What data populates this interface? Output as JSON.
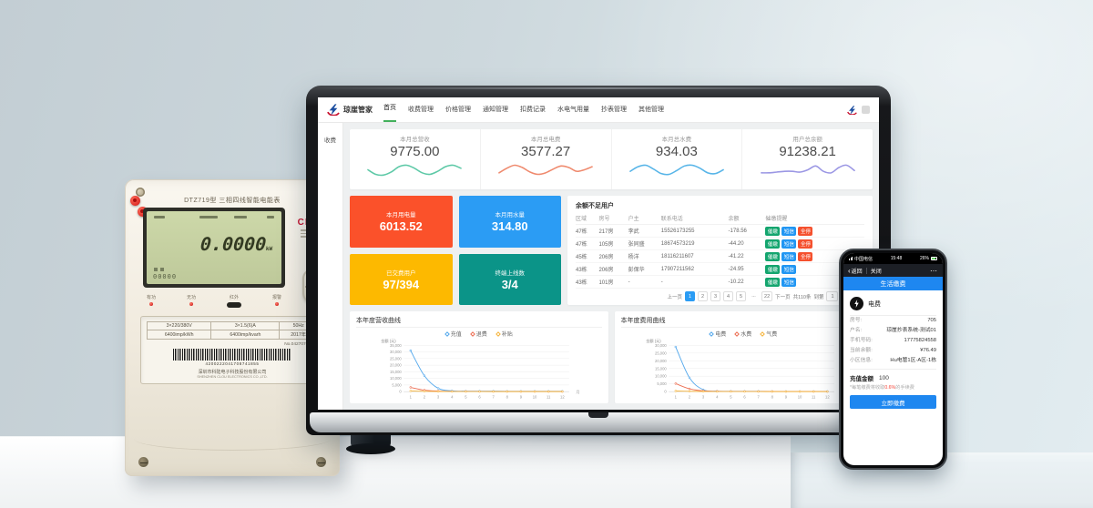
{
  "theme": {
    "accent_green": "#43b05c",
    "chip_colors": [
      "#13a56e",
      "#2196f3",
      "#f5512e"
    ],
    "phone_blue": "#1e87f0",
    "wifi_blue": "#2f97ea"
  },
  "meter": {
    "model_title": "DTZ719型 三相四线智能电能表",
    "brand": "CLOU",
    "lcd_value": "0.0000",
    "lcd_unit": "kW",
    "lcd_sub": "00000",
    "indicators": [
      "有功",
      "无功",
      "红外",
      "报警"
    ],
    "nameplate": {
      "specs_row1": [
        "3×220/380V",
        "3×1.5(6)A",
        "50Hz"
      ],
      "specs_row2": [
        "6400imp/kWh",
        "6400imp/kvarh",
        "2017年"
      ],
      "serial": "No.04270767003",
      "barcode_digits": "4200222041708741855",
      "company_cn": "深圳市科陆电子科技股份有限公司",
      "company_en": "SHENZHEN CLOU ELECTRONICS CO.,LTD."
    }
  },
  "dashboard": {
    "brand": "琼崖管家",
    "nav": [
      "首页",
      "收费管理",
      "价格管理",
      "通知管理",
      "扣费记录",
      "水电气用量",
      "抄表管理",
      "其他管理"
    ],
    "sidebar_item": "收费",
    "stat_cards": [
      {
        "label": "本月总营收",
        "value": "9775.00",
        "color": "#5ec9a7",
        "spark": [
          10,
          4,
          3,
          7,
          14,
          16,
          12,
          6,
          4,
          8,
          14,
          16,
          12
        ]
      },
      {
        "label": "本月总电费",
        "value": "3577.27",
        "color": "#ef8a6e",
        "spark": [
          6,
          12,
          16,
          13,
          7,
          4,
          6,
          11,
          15,
          13,
          8,
          10,
          14
        ]
      },
      {
        "label": "本月总水费",
        "value": "934.03",
        "color": "#58b5e8",
        "spark": [
          8,
          14,
          16,
          11,
          5,
          4,
          9,
          15,
          16,
          12,
          6,
          5,
          10
        ]
      },
      {
        "label": "用户总余额",
        "value": "91238.21",
        "color": "#9b97e4",
        "spark": [
          6,
          6,
          7,
          8,
          8,
          7,
          10,
          15,
          8,
          6,
          13,
          16,
          9
        ]
      }
    ],
    "tiles": [
      {
        "label": "本月用电量",
        "value": "6013.52",
        "color": "#fb512a"
      },
      {
        "label": "本月用水量",
        "value": "314.80",
        "color": "#2b9cf4"
      },
      {
        "label": "已交费用户",
        "value": "97/394",
        "color": "#fdb900"
      },
      {
        "label": "终端上线数",
        "value": "3/4",
        "color": "#0b9488"
      }
    ],
    "table": {
      "title": "余额不足用户",
      "headers": [
        "区域",
        "房号",
        "户主",
        "联系电话",
        "余额",
        "催缴提醒"
      ],
      "rows": [
        {
          "region": "47栋",
          "room": "217房",
          "owner": "李武",
          "phone": "15526173255",
          "balance": "-178.56",
          "actions": [
            "催缴",
            "短信",
            "全停"
          ]
        },
        {
          "region": "47栋",
          "room": "105房",
          "owner": "张同盛",
          "phone": "18674573219",
          "balance": "-44.20",
          "actions": [
            "催缴",
            "短信",
            "全停"
          ]
        },
        {
          "region": "45栋",
          "room": "206房",
          "owner": "杨洋",
          "phone": "18116211607",
          "balance": "-41.22",
          "actions": [
            "催缴",
            "短信",
            "全停"
          ]
        },
        {
          "region": "43栋",
          "room": "206房",
          "owner": "彭保华",
          "phone": "17907211562",
          "balance": "-24.95",
          "actions": [
            "催缴",
            "短信"
          ]
        },
        {
          "region": "43栋",
          "room": "101房",
          "owner": "-",
          "phone": "-",
          "balance": "-10.22",
          "actions": [
            "催缴",
            "短信"
          ]
        }
      ]
    },
    "pagination": {
      "prev": "上一页",
      "pages": [
        "1",
        "2",
        "3",
        "4",
        "5",
        "...",
        "22"
      ],
      "active_page": "1",
      "next": "下一页",
      "total": "共110条",
      "goto_label": "到第",
      "goto_value": "1",
      "goto_unit": "页",
      "confirm": "确定"
    }
  },
  "phone": {
    "status": {
      "carrier": "中国电信",
      "time": "15:48",
      "battery": "26%"
    },
    "nav": {
      "back_icon": "‹",
      "back": "返回",
      "close": "关闭",
      "more": "⋯"
    },
    "banner": "生活缴费",
    "service_label": "电费",
    "fields": [
      {
        "label": "房号:",
        "value": "705"
      },
      {
        "label": "户名:",
        "value": "琼崖抄表系统-测试01"
      },
      {
        "label": "手机号码:",
        "value": "17775824558"
      },
      {
        "label": "当前余额:",
        "value": "¥76.49"
      },
      {
        "label": "小区信息:",
        "value": "Hu电管1区-A区-1栋"
      }
    ],
    "recharge_label": "充值金额",
    "recharge_value": "100",
    "note_prefix": "*每笔缴费将收取",
    "note_percent": "0.6%",
    "note_suffix": "的手续费",
    "pay_button": "立即缴费"
  },
  "chart_data": [
    {
      "type": "line",
      "title": "本年度营收曲线",
      "x": [
        1,
        2,
        3,
        4,
        5,
        6,
        7,
        8,
        9,
        10,
        11,
        12
      ],
      "xlabel": "月",
      "ylabel": "金额 (元)",
      "ylim": [
        0,
        35000
      ],
      "yticks": [
        0,
        5000,
        10000,
        15000,
        20000,
        25000,
        30000,
        35000
      ],
      "grid": true,
      "legend_position": "top",
      "series": [
        {
          "name": "充值",
          "color": "#54a8ec",
          "values": [
            31000,
            12000,
            2500,
            600,
            350,
            300,
            280,
            260,
            250,
            240,
            230,
            220
          ]
        },
        {
          "name": "退费",
          "color": "#ec6e52",
          "values": [
            3200,
            1100,
            400,
            180,
            120,
            100,
            90,
            80,
            70,
            60,
            60,
            50
          ]
        },
        {
          "name": "补贴",
          "color": "#f5b43c",
          "values": [
            500,
            250,
            120,
            80,
            60,
            50,
            40,
            40,
            30,
            30,
            20,
            20
          ]
        }
      ]
    },
    {
      "type": "line",
      "title": "本年度费用曲线",
      "x": [
        1,
        2,
        3,
        4,
        5,
        6,
        7,
        8,
        9,
        10,
        11,
        12
      ],
      "xlabel": "月",
      "ylabel": "金额 (元)",
      "ylim": [
        0,
        30000
      ],
      "yticks": [
        0,
        5000,
        10000,
        15000,
        20000,
        25000,
        30000
      ],
      "grid": true,
      "legend_position": "top",
      "series": [
        {
          "name": "电费",
          "color": "#54a8ec",
          "values": [
            29000,
            9000,
            1200,
            300,
            200,
            180,
            160,
            150,
            140,
            130,
            120,
            110
          ]
        },
        {
          "name": "水费",
          "color": "#ec6e52",
          "values": [
            5200,
            1800,
            500,
            200,
            150,
            120,
            100,
            90,
            80,
            70,
            60,
            60
          ]
        },
        {
          "name": "气费",
          "color": "#f5b43c",
          "values": [
            400,
            200,
            100,
            60,
            50,
            40,
            40,
            30,
            30,
            20,
            20,
            20
          ]
        }
      ]
    }
  ]
}
